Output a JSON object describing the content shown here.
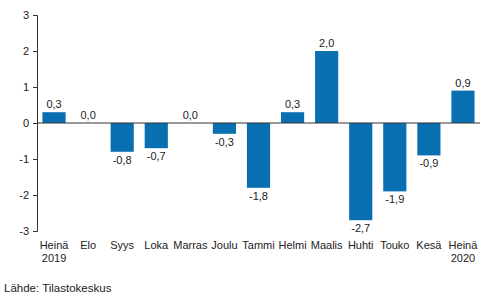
{
  "chart_data": {
    "type": "bar",
    "categories": [
      "Heinä\n2019",
      "Elo",
      "Syys",
      "Loka",
      "Marras",
      "Joulu",
      "Tammi",
      "Helmi",
      "Maalis",
      "Huhti",
      "Touko",
      "Kesä",
      "Heinä\n2020"
    ],
    "values": [
      0.3,
      0.0,
      -0.8,
      -0.7,
      0.0,
      -0.3,
      -1.8,
      0.3,
      2.0,
      -2.7,
      -1.9,
      -0.9,
      0.9
    ],
    "value_labels": [
      "0,3",
      "0,0",
      "-0,8",
      "-0,7",
      "0,0",
      "-0,3",
      "-1,8",
      "0,3",
      "2,0",
      "-2,7",
      "-1,9",
      "-0,9",
      "0,9"
    ],
    "color": "#0a6fb0",
    "ylim": [
      -3,
      3
    ],
    "yticks": [
      -3,
      -2,
      -1,
      0,
      1,
      2,
      3
    ],
    "grid": false,
    "data_labels": true,
    "source": "Lähde: Tilastokeskus"
  }
}
